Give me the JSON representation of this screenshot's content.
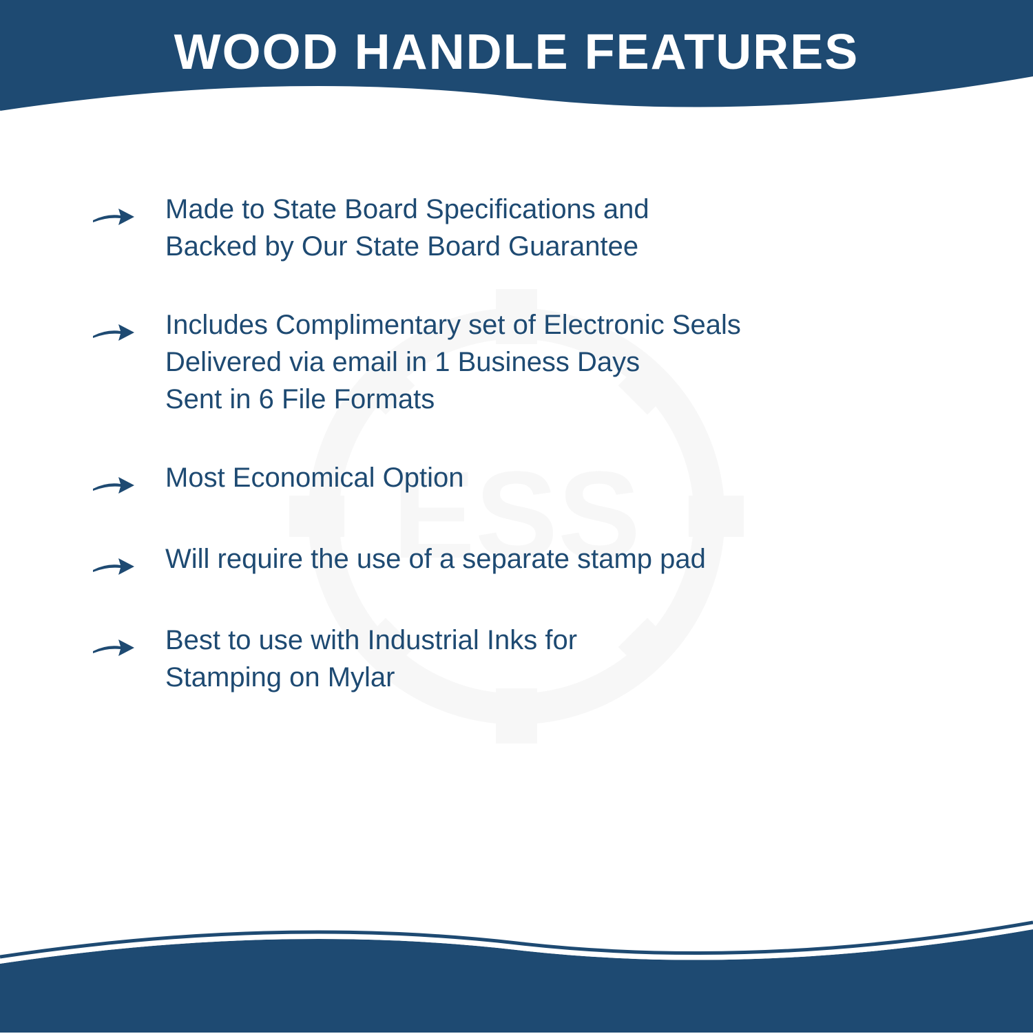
{
  "header": {
    "title": "WOOD HANDLE FEATURES"
  },
  "colors": {
    "primary": "#1e4a72",
    "background": "#ffffff",
    "watermark": "#8a8a8a"
  },
  "watermark": {
    "text": "ESS"
  },
  "features": [
    {
      "lines": [
        "Made to State Board Specifications and",
        "Backed by Our State Board Guarantee"
      ]
    },
    {
      "lines": [
        "Includes Complimentary set of Electronic Seals",
        "Delivered via email in 1 Business Days",
        "Sent in 6 File Formats"
      ]
    },
    {
      "lines": [
        "Most Economical Option"
      ]
    },
    {
      "lines": [
        "Will require the use of a separate stamp pad"
      ]
    },
    {
      "lines": [
        "Best to use with Industrial Inks for",
        "Stamping on Mylar"
      ]
    }
  ],
  "typography": {
    "title_fontsize": 72,
    "body_fontsize": 40
  }
}
